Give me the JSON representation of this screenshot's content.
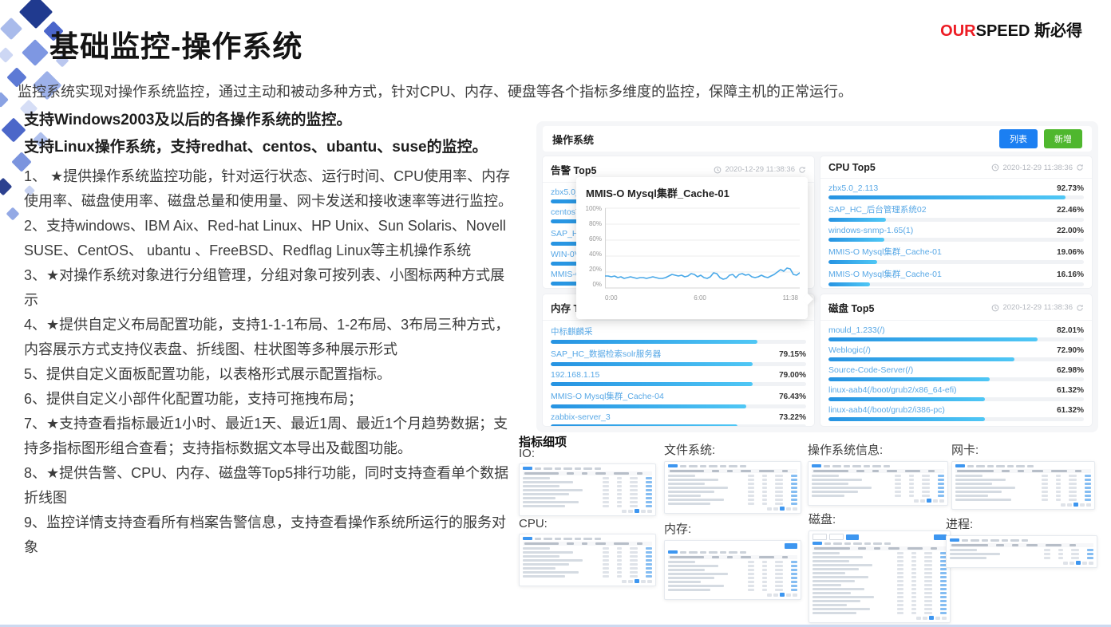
{
  "title": "基础监控-操作系统",
  "logo": {
    "en_red": "OUR",
    "en_black": "SPEED",
    "cn": " 斯必得"
  },
  "intro": "监控系统实现对操作系统监控，通过主动和被动多种方式，针对CPU、内存、硬盘等各个指标多维度的监控，保障主机的正常运行。",
  "support_lines": [
    "支持Windows2003及以后的各操作系统的监控。",
    "支持Linux操作系统，支持redhat、centos、ubantu、suse的监控。"
  ],
  "features": [
    "1、 ★提供操作系统监控功能，针对运行状态、运行时间、CPU使用率、内存使用率、磁盘使用率、磁盘总量和使用量、网卡发送和接收速率等进行监控。",
    "2、支持windows、IBM Aix、Red-hat Linux、HP Unix、Sun Solaris、Novell SUSE、CentOS、 ubantu 、FreeBSD、Redflag Linux等主机操作系统",
    "3、★对操作系统对象进行分组管理，分组对象可按列表、小图标两种方式展示",
    "4、★提供自定义布局配置功能，支持1-1-1布局、1-2布局、3布局三种方式，内容展示方式支持仪表盘、折线图、柱状图等多种展示形式",
    "5、提供自定义面板配置功能，以表格形式展示配置指标。",
    "6、提供自定义小部件化配置功能，支持可拖拽布局；",
    "7、★支持查看指标最近1小时、最近1天、最近1周、最近1个月趋势数据；支持多指标图形组合查看；支持指标数据文本导出及截图功能。",
    "8、★提供告警、CPU、内存、磁盘等Top5排行功能，同时支持查看单个数据折线图",
    "9、监控详情支持查看所有档案告警信息，支持查看操作系统所运行的服务对象"
  ],
  "dashboard": {
    "header": {
      "title": "操作系统",
      "list_button": "列表",
      "add_button": "新增"
    },
    "panels": [
      {
        "title": "告警 Top5",
        "timestamp": "2020-12-29 11:38:36",
        "items": [
          {
            "label": "zbx5.0_2.1",
            "value": "",
            "bar": 95
          },
          {
            "label": "centos7-m",
            "value": "",
            "bar": 90
          },
          {
            "label": "SAP_HC_数",
            "value": "",
            "bar": 85
          },
          {
            "label": "WIN-0V6T",
            "value": "",
            "bar": 80
          },
          {
            "label": "MMIS-O M",
            "value": "",
            "bar": 75
          }
        ]
      },
      {
        "title": "CPU Top5",
        "timestamp": "2020-12-29 11:38:36",
        "items": [
          {
            "label": "zbx5.0_2.113",
            "value": "92.73%",
            "bar": 92.73
          },
          {
            "label": "SAP_HC_后台管理系统02",
            "value": "22.46%",
            "bar": 22.46
          },
          {
            "label": "windows-snmp-1.65(1)",
            "value": "22.00%",
            "bar": 22.0
          },
          {
            "label": "MMIS-O Mysql集群_Cache-01",
            "value": "19.06%",
            "bar": 19.06
          },
          {
            "label": "MMIS-O Mysql集群_Cache-01",
            "value": "16.16%",
            "bar": 16.16
          }
        ]
      },
      {
        "title": "内存 Top5",
        "timestamp": "2020-12-29 11:38:36",
        "items": [
          {
            "label": "中标麒麟采",
            "value": "",
            "bar": 81
          },
          {
            "label": "SAP_HC_数据检索solr服务器",
            "value": "79.15%",
            "bar": 79.15
          },
          {
            "label": "192.168.1.15",
            "value": "79.00%",
            "bar": 79.0
          },
          {
            "label": "MMIS-O Mysql集群_Cache-04",
            "value": "76.43%",
            "bar": 76.43
          },
          {
            "label": "zabbix-server_3",
            "value": "73.22%",
            "bar": 73.22
          }
        ]
      },
      {
        "title": "磁盘 Top5",
        "timestamp": "2020-12-29 11:38:36",
        "items": [
          {
            "label": "mould_1.233(/)",
            "value": "82.01%",
            "bar": 82.01
          },
          {
            "label": "Weblogic(/)",
            "value": "72.90%",
            "bar": 72.9
          },
          {
            "label": "Source-Code-Server(/)",
            "value": "62.98%",
            "bar": 62.98
          },
          {
            "label": "linux-aab4(/boot/grub2/x86_64-efi)",
            "value": "61.32%",
            "bar": 61.32
          },
          {
            "label": "linux-aab4(/boot/grub2/i386-pc)",
            "value": "61.32%",
            "bar": 61.32
          }
        ]
      }
    ]
  },
  "chart_data": {
    "type": "line",
    "title": "MMIS-O Mysql集群_Cache-01",
    "x_ticks": [
      "0:00",
      "6:00",
      "11:38"
    ],
    "y_ticks": [
      "0%",
      "20%",
      "40%",
      "60%",
      "80%",
      "100%"
    ],
    "ylim": [
      0,
      100
    ],
    "unit": "%",
    "grid": true,
    "values": [
      15,
      15,
      14,
      15,
      13,
      14,
      12,
      13,
      14,
      13,
      12,
      13,
      13,
      12,
      13,
      14,
      13,
      12,
      12,
      13,
      15,
      17,
      16,
      15,
      16,
      14,
      15,
      18,
      17,
      14,
      16,
      13,
      12,
      14,
      19,
      18,
      13,
      11,
      12,
      16,
      17,
      13,
      17,
      18,
      16,
      17,
      14,
      13,
      14,
      16,
      14,
      13,
      15,
      17,
      20,
      23,
      21,
      25,
      24,
      17,
      16,
      19
    ]
  },
  "metrics": {
    "title": "指标细项",
    "groups": [
      {
        "label": "IO:",
        "rows": 8,
        "variant": "tabs"
      },
      {
        "label": "文件系统:",
        "rows": 8,
        "variant": "tabs"
      },
      {
        "label": "操作系统信息:",
        "rows": 6,
        "variant": "tabs"
      },
      {
        "label": "网卡:",
        "rows": 7,
        "variant": "tabs"
      },
      {
        "label": "CPU:",
        "rows": 8,
        "variant": "tabs"
      },
      {
        "label": "内存:",
        "rows": 8,
        "variant": "button"
      },
      {
        "label": "磁盘:",
        "rows": 16,
        "variant": "search"
      },
      {
        "label": "进程:",
        "rows": 3,
        "variant": "tabs"
      }
    ]
  },
  "icons": {
    "clock": "clock-icon",
    "refresh": "refresh-icon"
  },
  "colors": {
    "list_button": "#1b7ff2",
    "add_button": "#4fb72e",
    "bar_gradient_start": "#2693e2",
    "bar_gradient_end": "#4fc7f5",
    "item_link": "#58a8e6",
    "chart_line": "#4aa9e8",
    "logo_red": "#ed1c24",
    "bottom_border": "#ccd9f0"
  }
}
